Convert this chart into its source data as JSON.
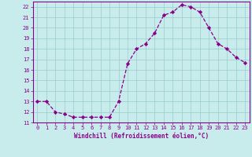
{
  "x": [
    0,
    1,
    2,
    3,
    4,
    5,
    6,
    7,
    8,
    9,
    10,
    11,
    12,
    13,
    14,
    15,
    16,
    17,
    18,
    19,
    20,
    21,
    22,
    23
  ],
  "y": [
    13,
    13,
    12,
    11.8,
    11.5,
    11.5,
    11.5,
    11.5,
    11.5,
    13,
    16.6,
    18,
    18.5,
    19.5,
    21.2,
    21.5,
    22.2,
    22,
    21.5,
    20,
    18.5,
    18,
    17.2,
    16.7
  ],
  "line_color": "#8B008B",
  "marker": "D",
  "marker_size": 2.2,
  "bg_color": "#c8ecec",
  "grid_color": "#99cccc",
  "xlabel": "Windchill (Refroidissement éolien,°C)",
  "xlabel_color": "#8B008B",
  "tick_color": "#8B008B",
  "spine_color": "#8B008B",
  "ylim": [
    11,
    22.5
  ],
  "xlim": [
    -0.5,
    23.5
  ],
  "yticks": [
    11,
    12,
    13,
    14,
    15,
    16,
    17,
    18,
    19,
    20,
    21,
    22
  ],
  "xticks": [
    0,
    1,
    2,
    3,
    4,
    5,
    6,
    7,
    8,
    9,
    10,
    11,
    12,
    13,
    14,
    15,
    16,
    17,
    18,
    19,
    20,
    21,
    22,
    23
  ],
  "tick_fontsize": 5.0,
  "xlabel_fontsize": 5.5,
  "linewidth": 0.9
}
